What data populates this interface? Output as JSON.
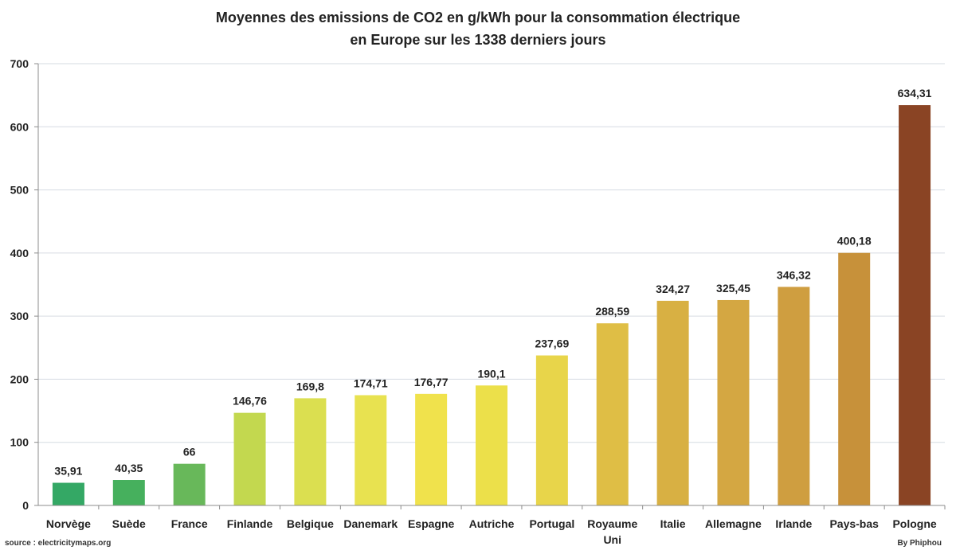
{
  "chart_data": {
    "type": "bar",
    "title": [
      "Moyennes des emissions de CO2 en g/kWh pour la consommation électrique",
      "en Europe sur les 1338 derniers jours"
    ],
    "xlabel": "",
    "ylabel": "",
    "ylim": [
      0,
      700
    ],
    "yticks": [
      0,
      100,
      200,
      300,
      400,
      500,
      600,
      700
    ],
    "grid": true,
    "categories": [
      "Norvège",
      "Suède",
      "France",
      "Finlande",
      "Belgique",
      "Danemark",
      "Espagne",
      "Autriche",
      "Portugal",
      "Royaume Uni",
      "Italie",
      "Allemagne",
      "Irlande",
      "Pays-bas",
      "Pologne"
    ],
    "values": [
      35.91,
      40.35,
      66,
      146.76,
      169.8,
      174.71,
      176.77,
      190.1,
      237.69,
      288.59,
      324.27,
      325.45,
      346.32,
      400.18,
      634.31
    ],
    "data_labels": [
      "35,91",
      "40,35",
      "66",
      "146,76",
      "169,8",
      "174,71",
      "176,77",
      "190,1",
      "237,69",
      "288,59",
      "324,27",
      "325,45",
      "346,32",
      "400,18",
      "634,31"
    ],
    "colors": [
      "#34a865",
      "#46b05d",
      "#68b85a",
      "#c3d84f",
      "#dbdf50",
      "#e8e250",
      "#f0e24c",
      "#ece04a",
      "#e8d54a",
      "#dfbe45",
      "#d8b043",
      "#d4a742",
      "#cf9e40",
      "#c7913a",
      "#8a4424"
    ]
  },
  "footer": {
    "source": "source : electricitymaps.org",
    "credit": "By Phiphou"
  }
}
